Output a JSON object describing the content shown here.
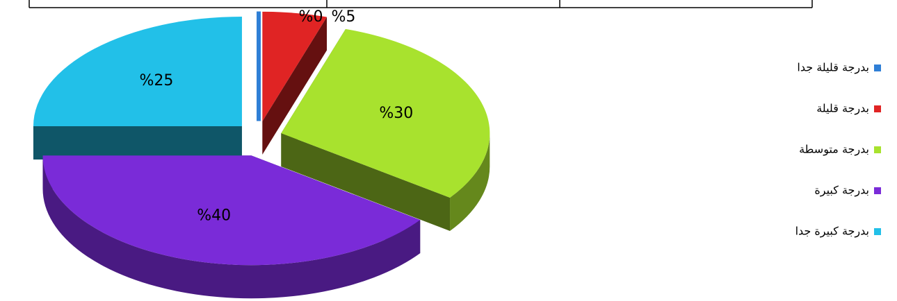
{
  "chart_data": {
    "type": "pie",
    "categories": [
      "بدرجة قليلة جدا",
      "بدرجة قليلة",
      "بدرجة متوسطة",
      "بدرجة كبيرة",
      "بدرجة كبيرة جدا"
    ],
    "values": [
      0,
      5,
      30,
      40,
      25
    ],
    "value_labels": [
      "%0",
      "%5",
      "%30",
      "%40",
      "%25"
    ],
    "colors": [
      "#2f7fd6",
      "#e02424",
      "#a8e22e",
      "#7a2bd8",
      "#22c0e8"
    ]
  }
}
